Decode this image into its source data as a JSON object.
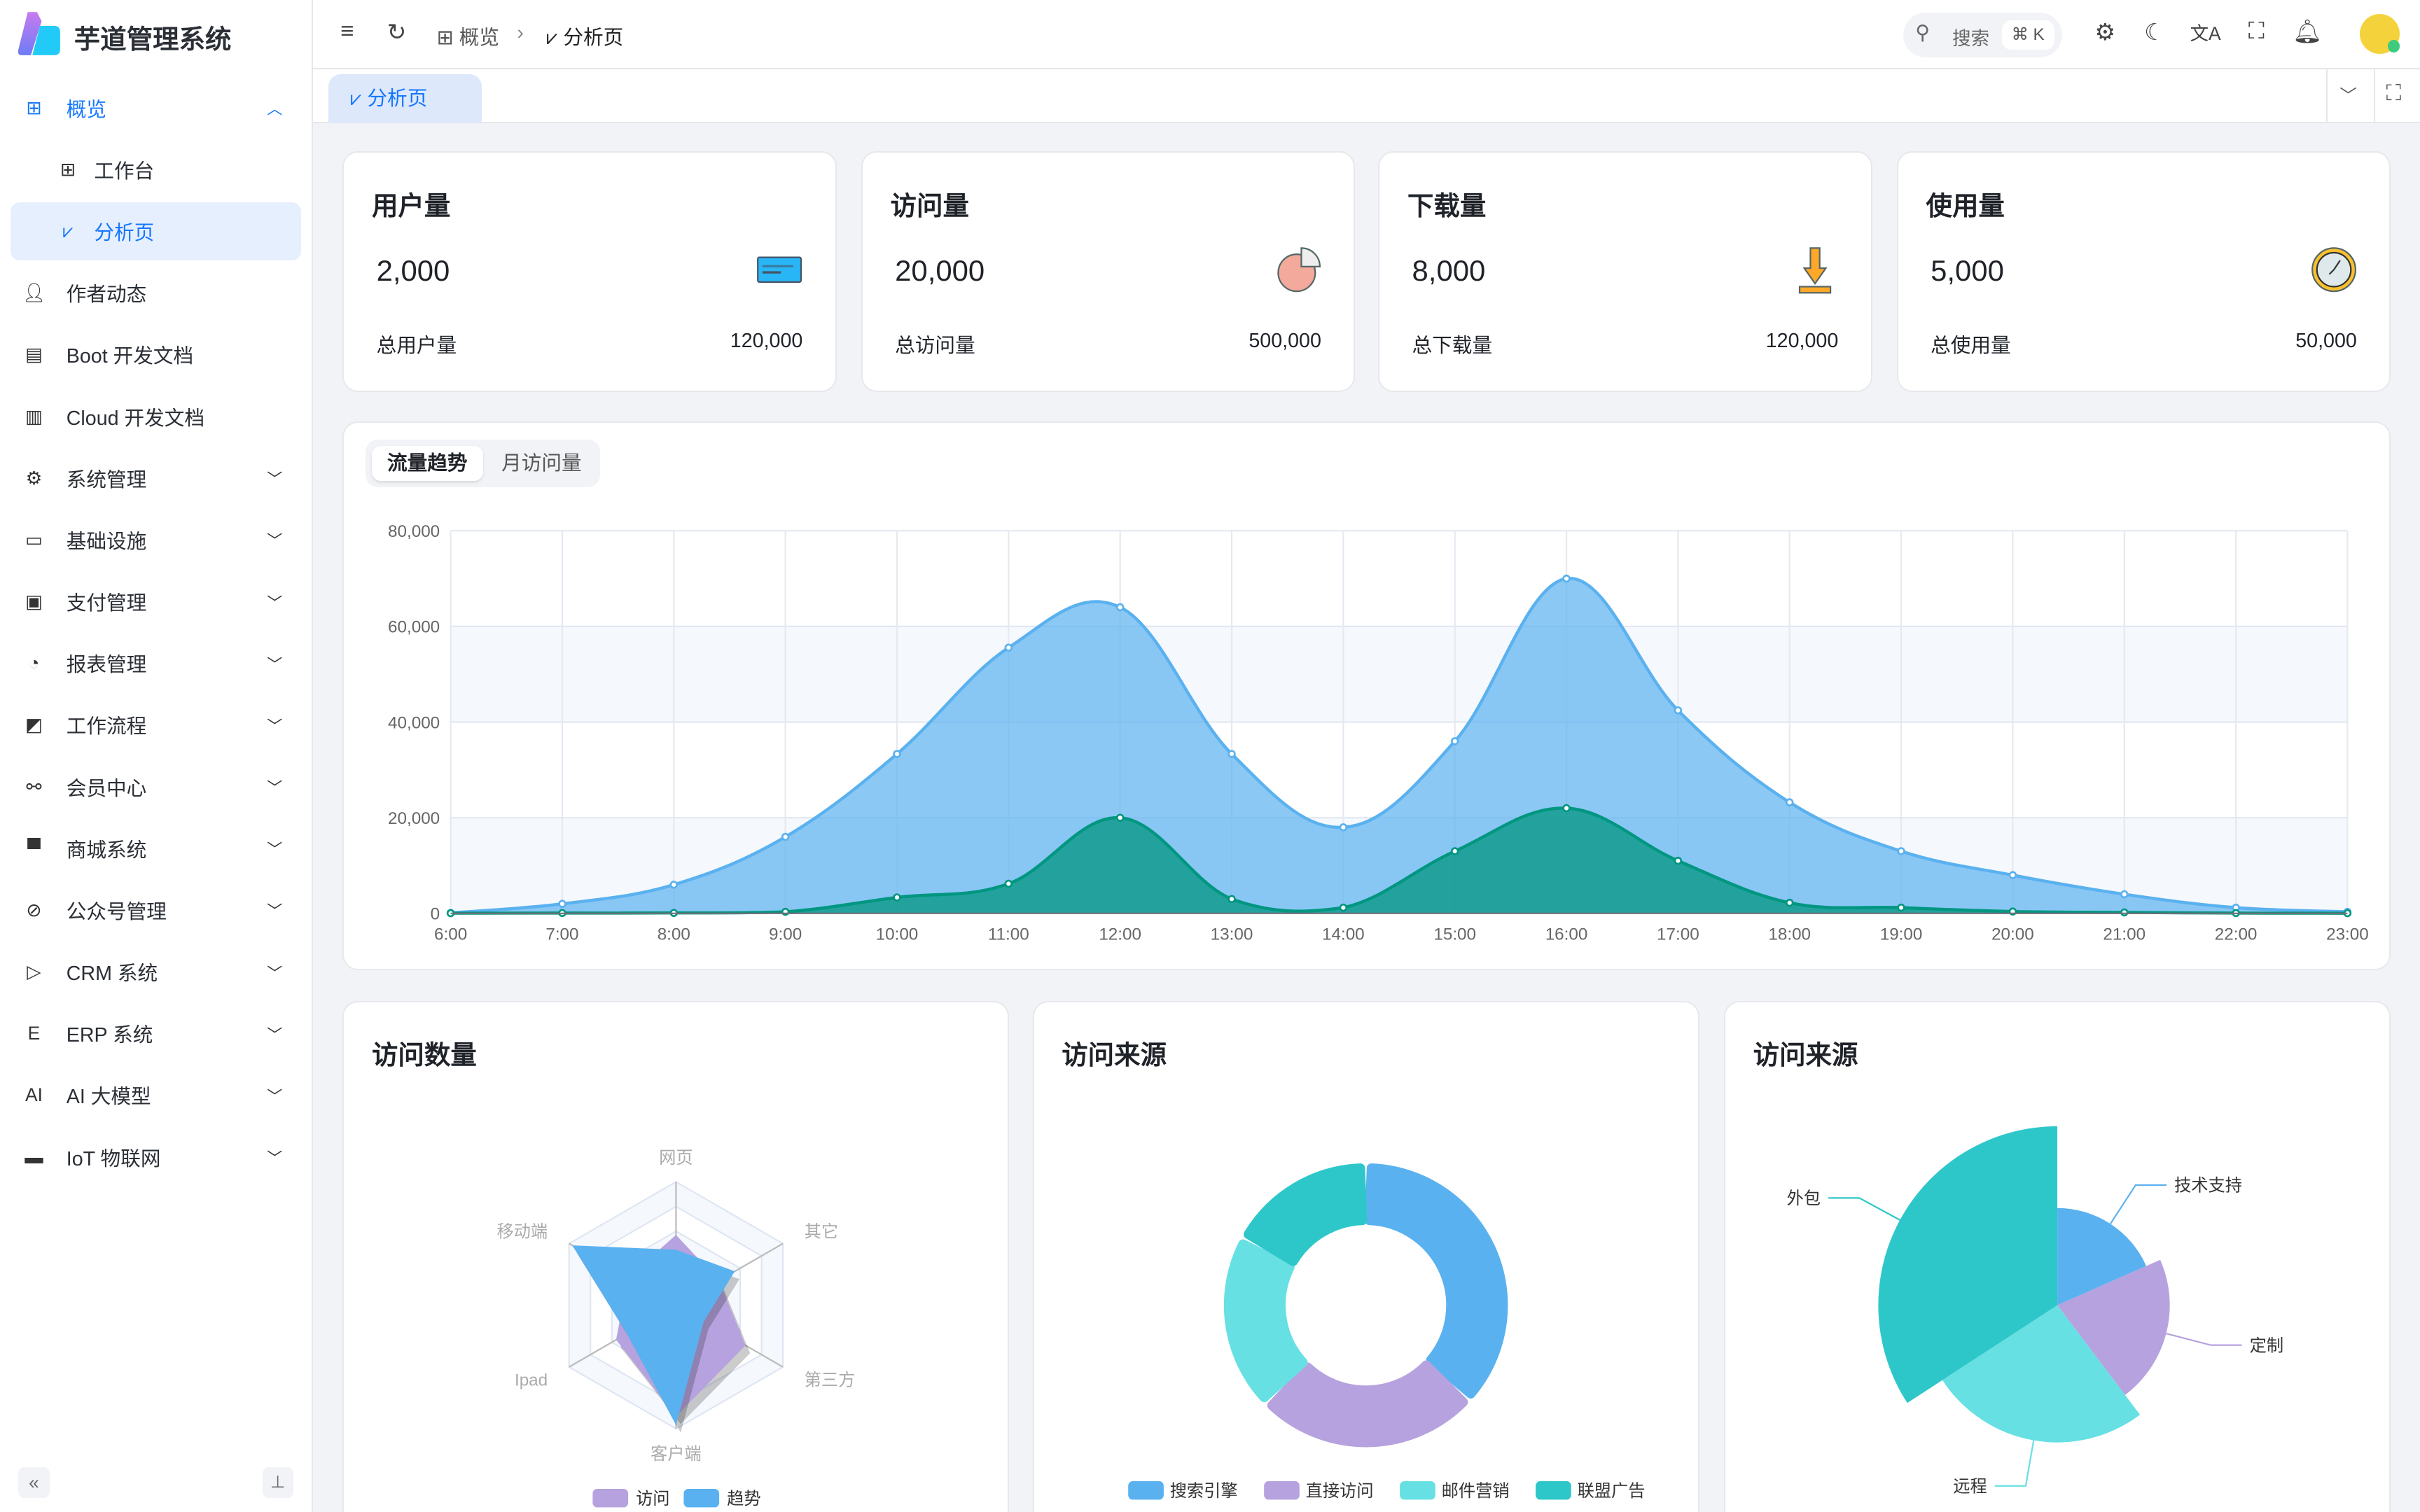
{
  "app": {
    "title": "芋道管理系统"
  },
  "sidebar": {
    "items": [
      {
        "label": "概览",
        "icon": "grid-icon",
        "chevron": "up",
        "state": "open"
      },
      {
        "label": "工作台",
        "icon": "grid-icon",
        "sub": true
      },
      {
        "label": "分析页",
        "icon": "chart-icon",
        "sub": true,
        "state": "active"
      },
      {
        "label": "作者动态",
        "icon": "user-icon"
      },
      {
        "label": "Boot 开发文档",
        "icon": "document-icon"
      },
      {
        "label": "Cloud 开发文档",
        "icon": "documents-icon"
      },
      {
        "label": "系统管理",
        "icon": "gear-icon",
        "chevron": "down"
      },
      {
        "label": "基础设施",
        "icon": "monitor-icon",
        "chevron": "down"
      },
      {
        "label": "支付管理",
        "icon": "payment-icon",
        "chevron": "down"
      },
      {
        "label": "报表管理",
        "icon": "pie-icon",
        "chevron": "down"
      },
      {
        "label": "工作流程",
        "icon": "workflow-icon",
        "chevron": "down"
      },
      {
        "label": "会员中心",
        "icon": "bike-icon",
        "chevron": "down"
      },
      {
        "label": "商城系统",
        "icon": "shop-icon",
        "chevron": "down"
      },
      {
        "label": "公众号管理",
        "icon": "compass-icon",
        "chevron": "down"
      },
      {
        "label": "CRM 系统",
        "icon": "crm-icon",
        "chevron": "down"
      },
      {
        "label": "ERP 系统",
        "icon": "erp-icon",
        "chevron": "down"
      },
      {
        "label": "AI 大模型",
        "icon": "ai-icon",
        "chevron": "down"
      },
      {
        "label": "IoT 物联网",
        "icon": "iot-icon",
        "chevron": "down"
      }
    ]
  },
  "header": {
    "breadcrumb": [
      "概览",
      "分析页"
    ],
    "search_placeholder": "搜索",
    "search_shortcut": "⌘ K"
  },
  "tabs": [
    {
      "label": "分析页",
      "active": true
    }
  ],
  "stats": [
    {
      "title": "用户量",
      "value": "2,000",
      "total_label": "总用户量",
      "total": "120,000",
      "icon": "card-icon"
    },
    {
      "title": "访问量",
      "value": "20,000",
      "total_label": "总访问量",
      "total": "500,000",
      "icon": "pie-percent-icon"
    },
    {
      "title": "下载量",
      "value": "8,000",
      "total_label": "总下载量",
      "total": "120,000",
      "icon": "download-icon"
    },
    {
      "title": "使用量",
      "value": "5,000",
      "total_label": "总使用量",
      "total": "50,000",
      "icon": "clock-icon"
    }
  ],
  "trend_tabs": [
    "流量趋势",
    "月访问量"
  ],
  "colors": {
    "accent": "#1677ff",
    "blue": "#5ab1ef",
    "purple": "#b6a2de",
    "cyan": "#67e0e3",
    "teal": "#2ec7c9",
    "green": "#019680"
  },
  "chart_data": [
    {
      "type": "area",
      "x": [
        "6:00",
        "7:00",
        "8:00",
        "9:00",
        "10:00",
        "11:00",
        "12:00",
        "13:00",
        "14:00",
        "15:00",
        "16:00",
        "17:00",
        "18:00",
        "19:00",
        "20:00",
        "21:00",
        "22:00",
        "23:00"
      ],
      "yticks": [
        "0",
        "20,000",
        "40,000",
        "60,000",
        "80,000"
      ],
      "ylim": [
        0,
        80000
      ],
      "grid": true,
      "series": [
        {
          "values": [
            111,
            2000,
            6000,
            16000,
            33333,
            55555,
            64000,
            33333,
            18000,
            36000,
            70000,
            42444,
            23222,
            13000,
            8000,
            4000,
            1200,
            333
          ],
          "color": "#5ab1ef"
        },
        {
          "values": [
            33,
            66,
            88,
            333,
            3333,
            6200,
            20000,
            3000,
            1200,
            13000,
            22000,
            11000,
            2221,
            1201,
            390,
            198,
            60,
            30
          ],
          "color": "#019680"
        }
      ]
    },
    {
      "type": "radar",
      "title": "访问数量",
      "indicators": [
        "网页",
        "移动端",
        "Ipad",
        "客户端",
        "第三方",
        "其它"
      ],
      "max": 100,
      "series": [
        {
          "name": "访问",
          "values": [
            57,
            45,
            56,
            90,
            65,
            40
          ],
          "color": "#b6a2de"
        },
        {
          "name": "趋势",
          "values": [
            45,
            97,
            46,
            97,
            26,
            55
          ],
          "color": "#5ab1ef"
        }
      ],
      "legend": "bottom"
    },
    {
      "type": "pie",
      "title": "访问来源",
      "donut": true,
      "slices": [
        {
          "name": "搜索引擎",
          "value": 1048,
          "color": "#5ab1ef"
        },
        {
          "name": "直接访问",
          "value": 735,
          "color": "#b6a2de"
        },
        {
          "name": "邮件营销",
          "value": 580,
          "color": "#67e0e3"
        },
        {
          "name": "联盟广告",
          "value": 484,
          "color": "#2ec7c9"
        }
      ],
      "legend": "bottom"
    },
    {
      "type": "pie",
      "title": "访问来源",
      "rose": "radius",
      "slices": [
        {
          "name": "技术支持",
          "value": 500,
          "color": "#5ab1ef"
        },
        {
          "name": "定制",
          "value": 580,
          "color": "#b6a2de"
        },
        {
          "name": "远程",
          "value": 710,
          "color": "#67e0e3"
        },
        {
          "name": "外包",
          "value": 930,
          "color": "#2ec7c9"
        }
      ]
    }
  ]
}
